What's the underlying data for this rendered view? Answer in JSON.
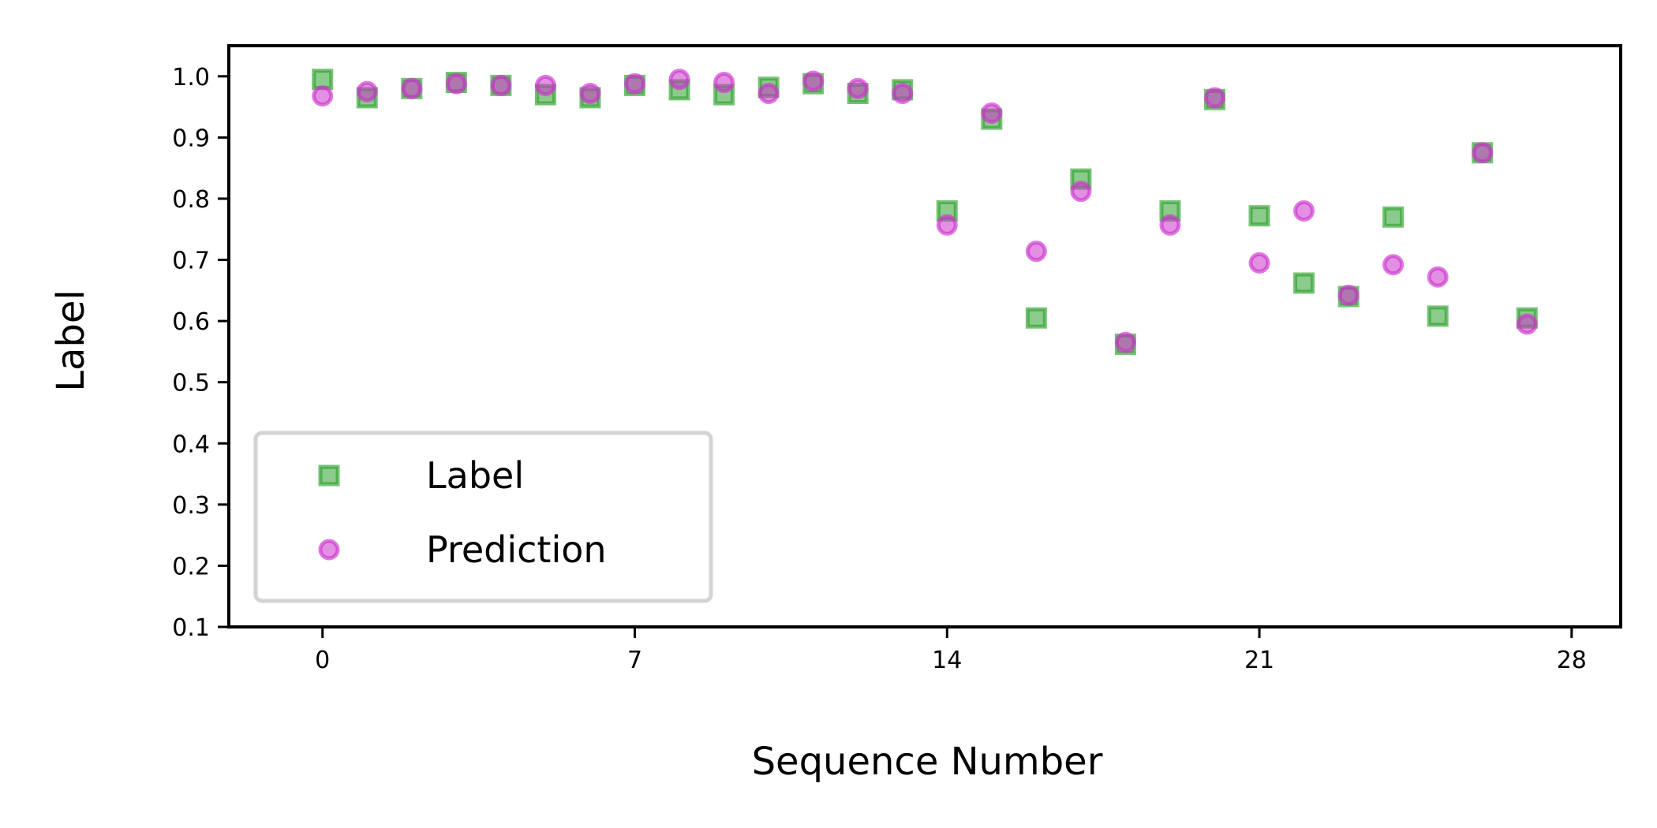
{
  "chart_data": {
    "type": "scatter",
    "title": "",
    "xlabel": "Sequence Number",
    "ylabel": "Label",
    "xlim": [
      -2.1,
      29.1
    ],
    "ylim": [
      0.1,
      1.05
    ],
    "xticks": [
      0,
      7,
      14,
      21,
      28
    ],
    "xtick_labels": [
      "0",
      "7",
      "14",
      "21",
      "28"
    ],
    "yticks": [
      0.1,
      0.2,
      0.3,
      0.4,
      0.5,
      0.6,
      0.7,
      0.8,
      0.9,
      1.0
    ],
    "ytick_labels": [
      "0.1",
      "0.2",
      "0.3",
      "0.4",
      "0.5",
      "0.6",
      "0.7",
      "0.8",
      "0.9",
      "1.0"
    ],
    "grid": false,
    "legend_position": "lower-left",
    "x": [
      0,
      1,
      2,
      3,
      4,
      5,
      6,
      7,
      8,
      9,
      10,
      11,
      12,
      13,
      14,
      15,
      16,
      17,
      18,
      19,
      20,
      21,
      22,
      23,
      24,
      25,
      26,
      27
    ],
    "series": [
      {
        "name": "Label",
        "marker": "square",
        "color": "#2ca02c",
        "values": [
          0.995,
          0.965,
          0.98,
          0.99,
          0.985,
          0.97,
          0.965,
          0.985,
          0.978,
          0.97,
          0.982,
          0.988,
          0.972,
          0.978,
          0.78,
          0.93,
          0.605,
          0.832,
          0.562,
          0.78,
          0.962,
          0.772,
          0.662,
          0.64,
          0.77,
          0.608,
          0.875,
          0.605
        ]
      },
      {
        "name": "Prediction",
        "marker": "circle",
        "color": "#cc33cc",
        "values": [
          0.968,
          0.975,
          0.98,
          0.988,
          0.985,
          0.985,
          0.972,
          0.988,
          0.995,
          0.99,
          0.972,
          0.992,
          0.98,
          0.972,
          0.757,
          0.94,
          0.714,
          0.812,
          0.565,
          0.757,
          0.965,
          0.695,
          0.78,
          0.642,
          0.692,
          0.672,
          0.875,
          0.595
        ]
      }
    ]
  }
}
